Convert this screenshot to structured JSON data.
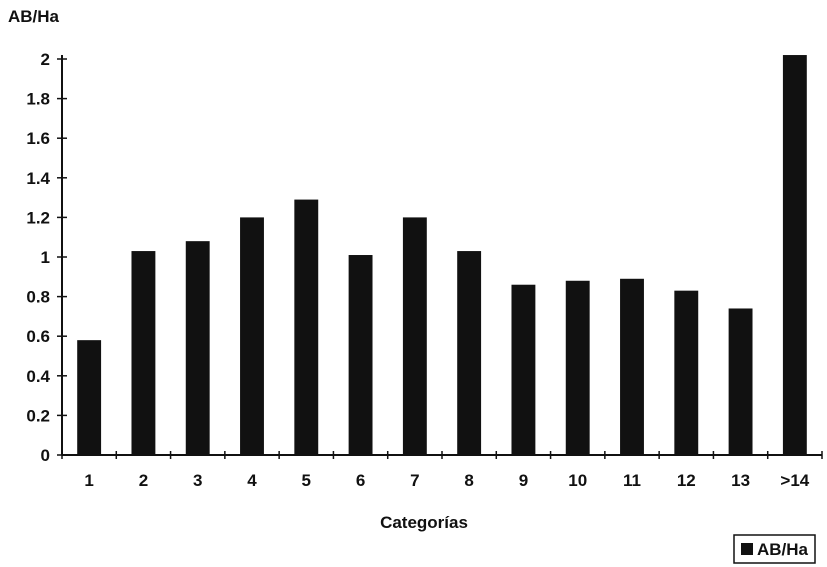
{
  "chart_data": {
    "type": "bar",
    "ylabel": "AB/Ha",
    "xlabel": "Categorías",
    "categories": [
      "1",
      "2",
      "3",
      "4",
      "5",
      "6",
      "7",
      "8",
      "9",
      "10",
      "11",
      "12",
      "13",
      ">14"
    ],
    "series": [
      {
        "name": "AB/Ha",
        "values": [
          0.58,
          1.03,
          1.08,
          1.2,
          1.29,
          1.01,
          1.2,
          1.03,
          0.86,
          0.88,
          0.89,
          0.83,
          0.74,
          2.02
        ]
      }
    ],
    "yticks": [
      "0",
      "0.2",
      "0.4",
      "0.6",
      "0.8",
      "1",
      "1.2",
      "1.4",
      "1.6",
      "1.8",
      "2"
    ],
    "ylim": [
      0,
      2
    ],
    "grid": false,
    "legend_position": "bottom-right",
    "bar_color": "#111111"
  }
}
